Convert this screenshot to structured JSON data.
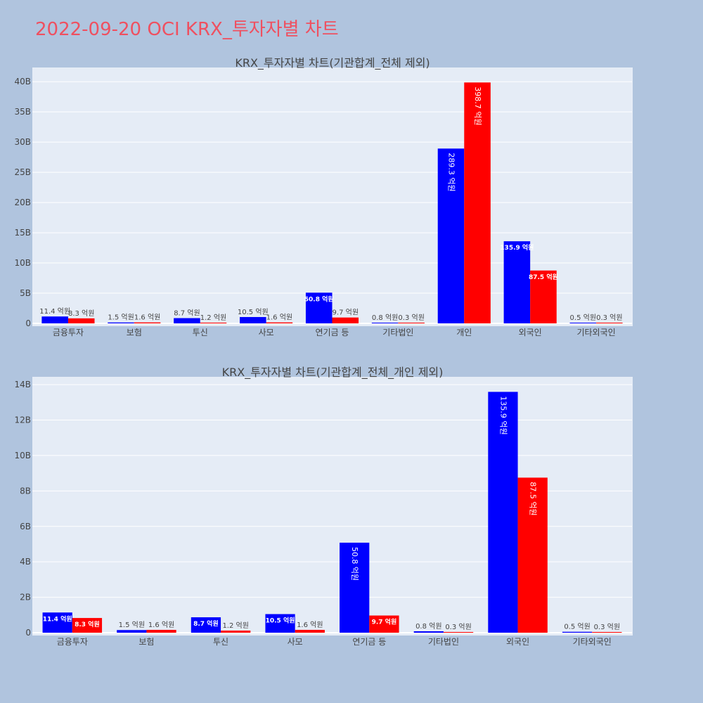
{
  "page": {
    "title": "2022-09-20 OCI KRX_투자자별 차트"
  },
  "colors": {
    "series_a": "#0000ff",
    "series_b": "#ff0000",
    "plot_bg": "#e5ecf6",
    "page_bg": "#b0c4de",
    "title": "#ef5060"
  },
  "chart_data": [
    {
      "type": "bar",
      "title": "KRX_투자자별 차트(기관합계_전체 제외)",
      "xlabel": "",
      "ylabel": "",
      "ylim": [
        0,
        42
      ],
      "y_unit": "B",
      "y_ticks": [
        0,
        5,
        10,
        15,
        20,
        25,
        30,
        35,
        40
      ],
      "y_tick_labels": [
        "0",
        "5B",
        "10B",
        "15B",
        "20B",
        "25B",
        "30B",
        "35B",
        "40B"
      ],
      "grid": true,
      "legend": "none",
      "categories": [
        "금융투자",
        "보험",
        "투신",
        "사모",
        "연기금 등",
        "기타법인",
        "개인",
        "외국인",
        "기타외국인"
      ],
      "series": [
        {
          "values": [
            1.14,
            0.15,
            0.87,
            1.05,
            5.08,
            0.08,
            28.93,
            13.59,
            0.05
          ],
          "labels": [
            "11.4 억원",
            "1.5 억원",
            "8.7 억원",
            "10.5 억원",
            "50.8 억원",
            "0.8 억원",
            "289.3 억원",
            "135.9 억원",
            "0.5 억원"
          ]
        },
        {
          "values": [
            0.83,
            0.16,
            0.12,
            0.16,
            0.97,
            0.03,
            39.87,
            8.75,
            0.03
          ],
          "labels": [
            "8.3 억원",
            "1.6 억원",
            "1.2 억원",
            "1.6 억원",
            "9.7 억원",
            "0.3 억원",
            "398.7 억원",
            "87.5 억원",
            "0.3 억원"
          ]
        }
      ]
    },
    {
      "type": "bar",
      "title": "KRX_투자자별 차트(기관합계_전체_개인 제외)",
      "xlabel": "",
      "ylabel": "",
      "ylim": [
        0,
        14.4
      ],
      "y_unit": "B",
      "y_ticks": [
        0,
        2,
        4,
        6,
        8,
        10,
        12,
        14
      ],
      "y_tick_labels": [
        "0",
        "2B",
        "4B",
        "6B",
        "8B",
        "10B",
        "12B",
        "14B"
      ],
      "grid": true,
      "legend": "none",
      "categories": [
        "금융투자",
        "보험",
        "투신",
        "사모",
        "연기금 등",
        "기타법인",
        "외국인",
        "기타외국인"
      ],
      "series": [
        {
          "values": [
            1.14,
            0.15,
            0.87,
            1.05,
            5.08,
            0.08,
            13.59,
            0.05
          ],
          "labels": [
            "11.4 억원",
            "1.5 억원",
            "8.7 억원",
            "10.5 억원",
            "50.8 억원",
            "0.8 억원",
            "135.9 억원",
            "0.5 억원"
          ]
        },
        {
          "values": [
            0.83,
            0.16,
            0.12,
            0.16,
            0.97,
            0.03,
            8.75,
            0.03
          ],
          "labels": [
            "8.3 억원",
            "1.6 억원",
            "1.2 억원",
            "1.6 억원",
            "9.7 억원",
            "0.3 억원",
            "87.5 억원",
            "0.3 억원"
          ]
        }
      ]
    }
  ]
}
